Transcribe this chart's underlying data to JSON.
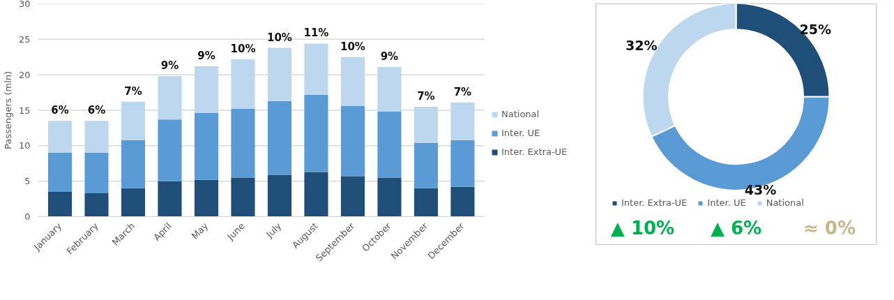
{
  "chart_data": [
    {
      "type": "bar",
      "stacked": true,
      "ylabel": "Passengers (mln)",
      "categories": [
        "January",
        "February",
        "March",
        "April",
        "May",
        "June",
        "July",
        "August",
        "September",
        "October",
        "November",
        "December"
      ],
      "series": [
        {
          "name": "Inter. Extra-UE",
          "color": "#1f4e79",
          "values": [
            3.5,
            3.3,
            4.0,
            5.0,
            5.2,
            5.5,
            5.9,
            6.3,
            5.7,
            5.5,
            4.0,
            4.2
          ]
        },
        {
          "name": "Inter. UE",
          "color": "#5b9bd5",
          "values": [
            5.5,
            5.7,
            6.8,
            8.7,
            9.4,
            9.7,
            10.4,
            10.9,
            9.9,
            9.3,
            6.4,
            6.6
          ]
        },
        {
          "name": "National",
          "color": "#bdd7ee",
          "values": [
            4.5,
            4.5,
            5.4,
            6.1,
            6.6,
            7.0,
            7.5,
            7.2,
            6.9,
            6.3,
            5.1,
            5.3
          ]
        }
      ],
      "annotations": [
        {
          "text": "6%",
          "x": "January",
          "y": 13.5
        },
        {
          "text": "6%",
          "x": "February",
          "y": 13.5
        },
        {
          "text": "7%",
          "x": "March",
          "y": 16.2
        },
        {
          "text": "9%",
          "x": "April",
          "y": 19.8
        },
        {
          "text": "9%",
          "x": "May",
          "y": 21.2
        },
        {
          "text": "10%",
          "x": "June",
          "y": 22.2
        },
        {
          "text": "10%",
          "x": "July",
          "y": 23.8
        },
        {
          "text": "11%",
          "x": "August",
          "y": 24.4
        },
        {
          "text": "10%",
          "x": "September",
          "y": 22.5
        },
        {
          "text": "9%",
          "x": "October",
          "y": 21.1
        },
        {
          "text": "7%",
          "x": "November",
          "y": 15.5
        },
        {
          "text": "7%",
          "x": "December",
          "y": 16.1
        }
      ],
      "ylim": [
        0,
        30
      ],
      "yticks": [
        0,
        5,
        10,
        15,
        20,
        25,
        30
      ],
      "grid": "y",
      "legend": "right"
    },
    {
      "type": "donut",
      "categories": [
        "Inter. Extra-UE",
        "Inter. UE",
        "National"
      ],
      "values": [
        25,
        43,
        32
      ],
      "colors": [
        "#1f4e79",
        "#5b9bd5",
        "#bdd7ee"
      ],
      "value_labels": [
        "25%",
        "43%",
        "32%"
      ],
      "legend": "bottom",
      "annotations": [
        "▲ 10%",
        "▲ 6%",
        "≈ 0%"
      ]
    }
  ]
}
